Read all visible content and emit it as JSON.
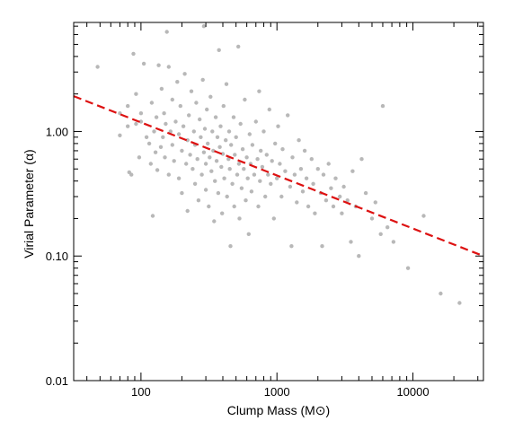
{
  "chart_data": {
    "type": "scatter",
    "xlabel": "Clump Mass (M⊙)",
    "ylabel": "Virial Parameter (α)",
    "xscale": "log",
    "yscale": "log",
    "xlim": [
      32,
      33000
    ],
    "ylim": [
      0.01,
      7.5
    ],
    "x_ticks": [
      100,
      1000,
      10000
    ],
    "x_tick_labels": [
      "100",
      "1000",
      "10000"
    ],
    "y_ticks": [
      0.01,
      0.1,
      1.0
    ],
    "y_tick_labels": [
      "0.01",
      "0.10",
      "1.00"
    ],
    "grid": false,
    "legend": "none",
    "colors": {
      "points": "#b8b8b8",
      "fit_line": "#dd1111"
    },
    "fit_line": {
      "style": "dashed",
      "x": [
        32,
        33000
      ],
      "y": [
        1.92,
        0.1
      ]
    },
    "series": [
      {
        "points": [
          [
            48,
            3.3
          ],
          [
            70,
            0.93
          ],
          [
            70,
            1.4
          ],
          [
            80,
            1.1
          ],
          [
            80,
            1.6
          ],
          [
            82,
            0.47
          ],
          [
            85,
            0.45
          ],
          [
            88,
            4.2
          ],
          [
            92,
            2.0
          ],
          [
            92,
            1.15
          ],
          [
            97,
            0.62
          ],
          [
            100,
            1.2
          ],
          [
            100,
            1.4
          ],
          [
            105,
            3.5
          ],
          [
            110,
            0.9
          ],
          [
            115,
            0.8
          ],
          [
            118,
            0.55
          ],
          [
            120,
            1.7
          ],
          [
            122,
            0.21
          ],
          [
            125,
            1.0
          ],
          [
            128,
            0.68
          ],
          [
            130,
            1.3
          ],
          [
            132,
            0.49
          ],
          [
            135,
            3.4
          ],
          [
            140,
            0.75
          ],
          [
            142,
            2.2
          ],
          [
            145,
            0.9
          ],
          [
            148,
            1.4
          ],
          [
            150,
            0.62
          ],
          [
            152,
            1.15
          ],
          [
            155,
            6.3
          ],
          [
            160,
            0.45
          ],
          [
            160,
            3.3
          ],
          [
            165,
            1.0
          ],
          [
            170,
            1.8
          ],
          [
            170,
            0.78
          ],
          [
            175,
            0.58
          ],
          [
            180,
            1.2
          ],
          [
            185,
            2.5
          ],
          [
            190,
            0.42
          ],
          [
            190,
            0.95
          ],
          [
            195,
            1.6
          ],
          [
            200,
            0.7
          ],
          [
            200,
            0.32
          ],
          [
            205,
            1.1
          ],
          [
            210,
            2.9
          ],
          [
            215,
            0.55
          ],
          [
            220,
            0.85
          ],
          [
            220,
            0.23
          ],
          [
            225,
            1.35
          ],
          [
            230,
            0.65
          ],
          [
            235,
            2.1
          ],
          [
            240,
            0.5
          ],
          [
            245,
            1.0
          ],
          [
            250,
            0.38
          ],
          [
            250,
            0.78
          ],
          [
            255,
            1.7
          ],
          [
            260,
            0.6
          ],
          [
            265,
            0.28
          ],
          [
            270,
            1.25
          ],
          [
            275,
            0.9
          ],
          [
            280,
            0.45
          ],
          [
            285,
            2.6
          ],
          [
            290,
            0.68
          ],
          [
            290,
            7.0
          ],
          [
            295,
            1.05
          ],
          [
            300,
            0.55
          ],
          [
            300,
            0.34
          ],
          [
            305,
            1.5
          ],
          [
            310,
            0.8
          ],
          [
            315,
            0.25
          ],
          [
            320,
            0.62
          ],
          [
            325,
            1.9
          ],
          [
            330,
            0.48
          ],
          [
            335,
            1.0
          ],
          [
            340,
            0.7
          ],
          [
            345,
            0.19
          ],
          [
            350,
            0.4
          ],
          [
            355,
            1.3
          ],
          [
            360,
            0.58
          ],
          [
            365,
            0.9
          ],
          [
            370,
            0.32
          ],
          [
            375,
            4.5
          ],
          [
            380,
            0.75
          ],
          [
            385,
            1.1
          ],
          [
            390,
            0.52
          ],
          [
            395,
            0.22
          ],
          [
            400,
            0.66
          ],
          [
            405,
            1.6
          ],
          [
            410,
            0.42
          ],
          [
            420,
            0.85
          ],
          [
            425,
            2.4
          ],
          [
            430,
            0.3
          ],
          [
            440,
            0.6
          ],
          [
            445,
            1.0
          ],
          [
            450,
            0.5
          ],
          [
            455,
            0.12
          ],
          [
            460,
            0.78
          ],
          [
            470,
            0.38
          ],
          [
            480,
            1.3
          ],
          [
            485,
            0.25
          ],
          [
            490,
            0.65
          ],
          [
            500,
            0.9
          ],
          [
            510,
            0.45
          ],
          [
            520,
            4.8
          ],
          [
            525,
            0.55
          ],
          [
            530,
            0.2
          ],
          [
            540,
            1.15
          ],
          [
            550,
            0.35
          ],
          [
            560,
            0.72
          ],
          [
            570,
            0.5
          ],
          [
            580,
            1.8
          ],
          [
            590,
            0.28
          ],
          [
            600,
            0.62
          ],
          [
            610,
            0.42
          ],
          [
            620,
            0.15
          ],
          [
            630,
            0.95
          ],
          [
            640,
            0.55
          ],
          [
            650,
            0.33
          ],
          [
            660,
            0.78
          ],
          [
            680,
            0.45
          ],
          [
            700,
            1.2
          ],
          [
            720,
            0.6
          ],
          [
            730,
            0.25
          ],
          [
            740,
            2.1
          ],
          [
            750,
            0.4
          ],
          [
            760,
            0.7
          ],
          [
            780,
            0.52
          ],
          [
            800,
            1.0
          ],
          [
            820,
            0.3
          ],
          [
            840,
            0.65
          ],
          [
            860,
            0.45
          ],
          [
            880,
            1.5
          ],
          [
            900,
            0.38
          ],
          [
            920,
            0.58
          ],
          [
            950,
            0.2
          ],
          [
            970,
            0.8
          ],
          [
            1000,
            0.42
          ],
          [
            1020,
            1.1
          ],
          [
            1050,
            0.55
          ],
          [
            1080,
            0.3
          ],
          [
            1100,
            0.72
          ],
          [
            1150,
            0.48
          ],
          [
            1200,
            1.35
          ],
          [
            1250,
            0.36
          ],
          [
            1280,
            0.12
          ],
          [
            1300,
            0.62
          ],
          [
            1350,
            0.45
          ],
          [
            1400,
            0.27
          ],
          [
            1450,
            0.85
          ],
          [
            1500,
            0.5
          ],
          [
            1550,
            0.33
          ],
          [
            1600,
            0.7
          ],
          [
            1650,
            0.42
          ],
          [
            1700,
            0.25
          ],
          [
            1800,
            0.6
          ],
          [
            1850,
            0.38
          ],
          [
            1900,
            0.22
          ],
          [
            2000,
            0.5
          ],
          [
            2100,
            0.32
          ],
          [
            2150,
            0.12
          ],
          [
            2200,
            0.45
          ],
          [
            2300,
            0.28
          ],
          [
            2400,
            0.55
          ],
          [
            2500,
            0.35
          ],
          [
            2600,
            0.25
          ],
          [
            2700,
            0.42
          ],
          [
            2900,
            0.3
          ],
          [
            3000,
            0.22
          ],
          [
            3100,
            0.36
          ],
          [
            3300,
            0.28
          ],
          [
            3500,
            0.13
          ],
          [
            3600,
            0.48
          ],
          [
            3800,
            0.25
          ],
          [
            4000,
            0.1
          ],
          [
            4200,
            0.6
          ],
          [
            4500,
            0.32
          ],
          [
            5000,
            0.2
          ],
          [
            5300,
            0.27
          ],
          [
            5800,
            0.15
          ],
          [
            6000,
            1.6
          ],
          [
            6500,
            0.17
          ],
          [
            7200,
            0.13
          ],
          [
            9200,
            0.08
          ],
          [
            12000,
            0.21
          ],
          [
            16000,
            0.05
          ],
          [
            22000,
            0.042
          ]
        ]
      }
    ]
  }
}
